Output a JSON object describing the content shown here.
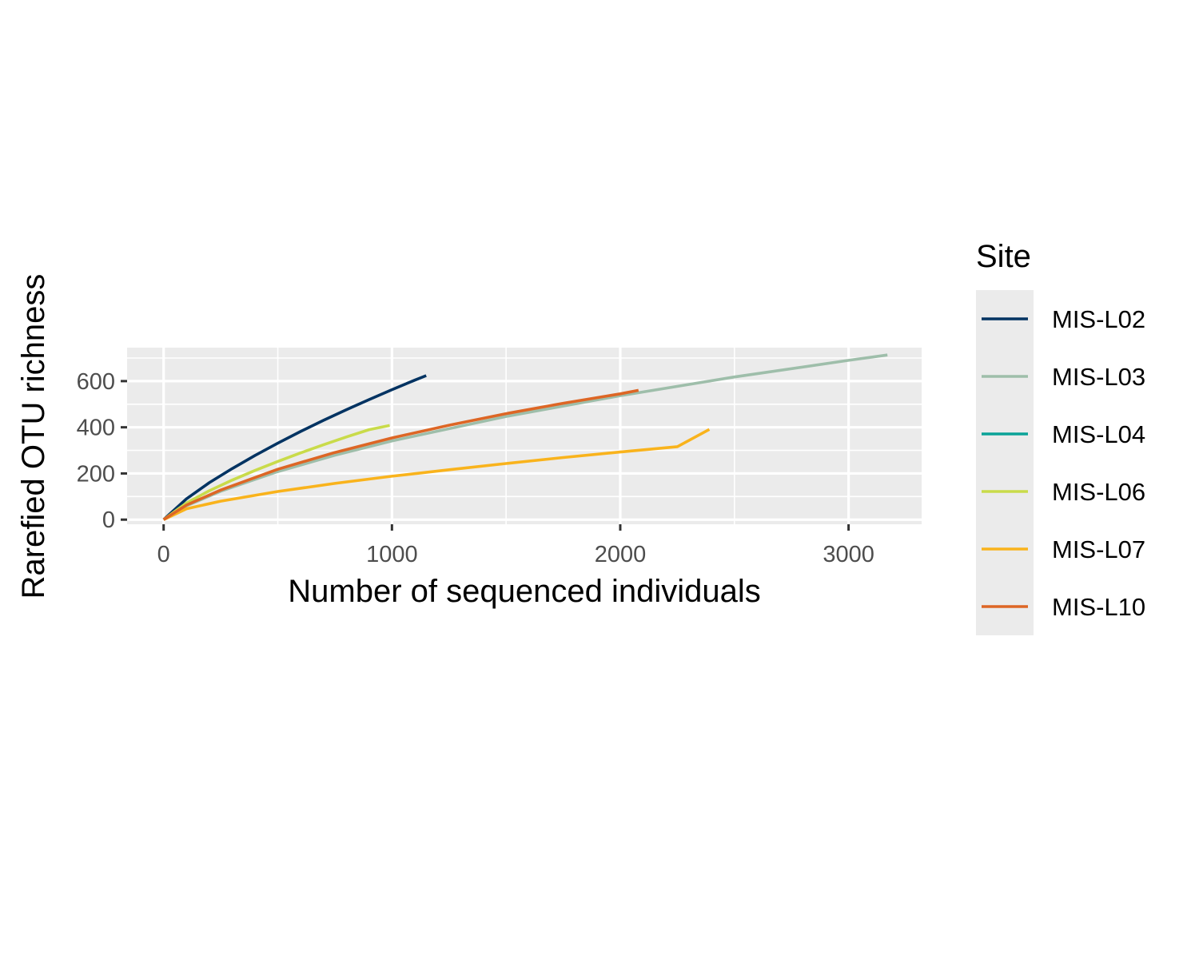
{
  "chart_data": {
    "type": "line",
    "title": "",
    "xlabel": "Number of sequenced individuals",
    "ylabel": "Rarefied OTU richness",
    "xlim": [
      -160,
      3320
    ],
    "ylim": [
      -20,
      745
    ],
    "x_ticks": [
      0,
      1000,
      2000,
      3000
    ],
    "y_ticks": [
      0,
      200,
      400,
      600
    ],
    "x_tick_labels": [
      "0",
      "1000",
      "2000",
      "3000"
    ],
    "y_tick_labels": [
      "0",
      "200",
      "400",
      "600"
    ],
    "grid": true,
    "legend": {
      "title": "Site",
      "position": "right"
    },
    "series": [
      {
        "name": "MIS-L02",
        "color": "#023362",
        "x": [
          0,
          100,
          200,
          300,
          400,
          500,
          600,
          700,
          800,
          900,
          1000,
          1100,
          1150
        ],
        "y": [
          0,
          90,
          160,
          221,
          278,
          331,
          382,
          430,
          476,
          520,
          563,
          604,
          624
        ]
      },
      {
        "name": "MIS-L03",
        "color": "#9ebeaa",
        "x": [
          0,
          100,
          250,
          500,
          750,
          1000,
          1500,
          2000,
          2500,
          3000,
          3170
        ],
        "y": [
          0,
          60,
          123,
          208,
          279,
          341,
          447,
          537,
          618,
          690,
          713
        ]
      },
      {
        "name": "MIS-L04",
        "color": "#0aa398",
        "x": [],
        "y": []
      },
      {
        "name": "MIS-L06",
        "color": "#c9db4a",
        "x": [
          0,
          100,
          200,
          300,
          400,
          500,
          600,
          700,
          800,
          900,
          990
        ],
        "y": [
          0,
          72,
          125,
          171,
          213,
          252,
          289,
          324,
          358,
          390,
          408
        ]
      },
      {
        "name": "MIS-L07",
        "color": "#f9b31c",
        "x": [
          0,
          100,
          250,
          500,
          750,
          1000,
          1250,
          1500,
          1750,
          2000,
          2250,
          2390
        ],
        "y": [
          0,
          47,
          80,
          122,
          157,
          188,
          216,
          243,
          269,
          293,
          316,
          391
        ]
      },
      {
        "name": "MIS-L10",
        "color": "#dd6625",
        "x": [
          0,
          100,
          250,
          500,
          750,
          1000,
          1250,
          1500,
          1750,
          2000,
          2080
        ],
        "y": [
          0,
          63,
          128,
          218,
          291,
          354,
          409,
          459,
          504,
          545,
          560
        ]
      }
    ]
  }
}
